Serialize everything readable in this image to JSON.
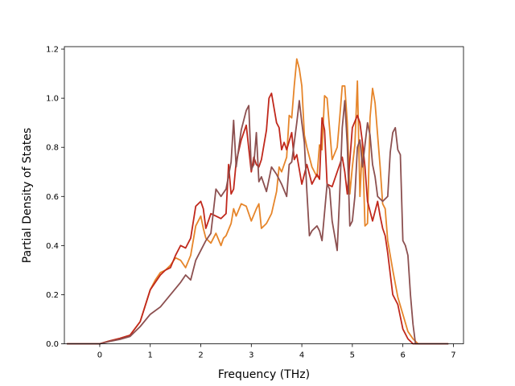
{
  "chart_data": {
    "type": "line",
    "title": "",
    "xlabel": "Frequency (THz)",
    "ylabel": "Partial Density of States",
    "xlim": [
      -0.7,
      7.2
    ],
    "ylim": [
      0.0,
      1.21
    ],
    "xticks": [
      0,
      1,
      2,
      3,
      4,
      5,
      6,
      7
    ],
    "xtick_labels": [
      "0",
      "1",
      "2",
      "3",
      "4",
      "5",
      "6",
      "7"
    ],
    "yticks": [
      0.0,
      0.2,
      0.4,
      0.6,
      0.8,
      1.0,
      1.2
    ],
    "ytick_labels": [
      "0.0",
      "0.2",
      "0.4",
      "0.6",
      "0.8",
      "1.0",
      "1.2"
    ],
    "grid": false,
    "legend": "none",
    "series": [
      {
        "color": "#e6852a",
        "x": [
          -0.65,
          0.0,
          0.2,
          0.4,
          0.6,
          0.8,
          1.0,
          1.1,
          1.2,
          1.3,
          1.4,
          1.5,
          1.6,
          1.7,
          1.8,
          1.9,
          2.0,
          2.05,
          2.1,
          2.15,
          2.2,
          2.3,
          2.4,
          2.45,
          2.5,
          2.6,
          2.65,
          2.7,
          2.8,
          2.9,
          3.0,
          3.1,
          3.15,
          3.2,
          3.3,
          3.4,
          3.5,
          3.55,
          3.6,
          3.7,
          3.75,
          3.8,
          3.85,
          3.9,
          3.95,
          4.0,
          4.05,
          4.1,
          4.2,
          4.3,
          4.35,
          4.4,
          4.45,
          4.5,
          4.6,
          4.7,
          4.75,
          4.8,
          4.85,
          4.9,
          4.95,
          5.0,
          5.05,
          5.1,
          5.15,
          5.2,
          5.25,
          5.3,
          5.35,
          5.4,
          5.45,
          5.5,
          5.55,
          5.6,
          5.65,
          5.7,
          5.8,
          5.9,
          6.0,
          6.1,
          6.2,
          6.3,
          6.4,
          6.6,
          6.9
        ],
        "y": [
          0.0,
          0.0,
          0.012,
          0.022,
          0.035,
          0.09,
          0.22,
          0.26,
          0.29,
          0.3,
          0.32,
          0.35,
          0.34,
          0.31,
          0.36,
          0.48,
          0.52,
          0.47,
          0.43,
          0.42,
          0.41,
          0.45,
          0.4,
          0.43,
          0.44,
          0.49,
          0.55,
          0.52,
          0.57,
          0.56,
          0.5,
          0.55,
          0.57,
          0.47,
          0.49,
          0.53,
          0.62,
          0.72,
          0.7,
          0.76,
          0.93,
          0.92,
          1.05,
          1.16,
          1.12,
          1.05,
          0.85,
          0.8,
          0.72,
          0.68,
          0.81,
          0.79,
          1.01,
          1.0,
          0.75,
          0.8,
          0.92,
          1.05,
          1.05,
          0.9,
          0.61,
          0.72,
          0.81,
          1.07,
          0.6,
          0.82,
          0.48,
          0.49,
          0.92,
          1.04,
          0.98,
          0.85,
          0.72,
          0.57,
          0.55,
          0.42,
          0.3,
          0.19,
          0.12,
          0.05,
          0.02,
          0.0,
          0.0,
          0.0,
          0.0
        ]
      },
      {
        "color": "#c0281c",
        "x": [
          -0.65,
          0.0,
          0.2,
          0.4,
          0.6,
          0.8,
          1.0,
          1.1,
          1.2,
          1.3,
          1.4,
          1.5,
          1.6,
          1.7,
          1.8,
          1.9,
          2.0,
          2.05,
          2.1,
          2.2,
          2.3,
          2.4,
          2.5,
          2.55,
          2.6,
          2.65,
          2.7,
          2.8,
          2.9,
          3.0,
          3.05,
          3.1,
          3.15,
          3.2,
          3.3,
          3.35,
          3.4,
          3.5,
          3.55,
          3.6,
          3.65,
          3.7,
          3.8,
          3.85,
          3.9,
          4.0,
          4.1,
          4.2,
          4.3,
          4.35,
          4.4,
          4.45,
          4.5,
          4.6,
          4.7,
          4.8,
          4.85,
          4.9,
          5.0,
          5.1,
          5.15,
          5.2,
          5.25,
          5.3,
          5.4,
          5.5,
          5.55,
          5.6,
          5.65,
          5.7,
          5.8,
          5.9,
          6.0,
          6.1,
          6.2,
          6.3,
          6.5,
          6.9
        ],
        "y": [
          0.0,
          0.0,
          0.012,
          0.022,
          0.035,
          0.09,
          0.22,
          0.25,
          0.28,
          0.3,
          0.31,
          0.36,
          0.4,
          0.39,
          0.43,
          0.56,
          0.58,
          0.55,
          0.47,
          0.53,
          0.52,
          0.51,
          0.53,
          0.73,
          0.61,
          0.63,
          0.74,
          0.83,
          0.89,
          0.7,
          0.76,
          0.73,
          0.72,
          0.75,
          0.87,
          1.0,
          1.02,
          0.9,
          0.88,
          0.79,
          0.82,
          0.79,
          0.86,
          0.75,
          0.77,
          0.65,
          0.73,
          0.65,
          0.69,
          0.67,
          0.92,
          0.87,
          0.65,
          0.64,
          0.7,
          0.76,
          0.7,
          0.61,
          0.88,
          0.93,
          0.9,
          0.82,
          0.72,
          0.58,
          0.5,
          0.58,
          0.52,
          0.47,
          0.44,
          0.37,
          0.2,
          0.16,
          0.06,
          0.02,
          0.0,
          0.0,
          0.0,
          0.0
        ]
      },
      {
        "color": "#8c5050",
        "x": [
          -0.65,
          0.0,
          0.2,
          0.4,
          0.6,
          0.8,
          1.0,
          1.2,
          1.4,
          1.6,
          1.7,
          1.8,
          1.9,
          2.0,
          2.1,
          2.2,
          2.3,
          2.4,
          2.5,
          2.6,
          2.65,
          2.7,
          2.8,
          2.9,
          2.95,
          3.0,
          3.05,
          3.1,
          3.15,
          3.2,
          3.3,
          3.4,
          3.5,
          3.6,
          3.7,
          3.75,
          3.8,
          3.85,
          3.9,
          3.95,
          4.0,
          4.05,
          4.1,
          4.15,
          4.2,
          4.3,
          4.35,
          4.4,
          4.5,
          4.55,
          4.6,
          4.7,
          4.75,
          4.8,
          4.85,
          4.9,
          4.95,
          5.0,
          5.05,
          5.1,
          5.15,
          5.2,
          5.3,
          5.35,
          5.4,
          5.45,
          5.5,
          5.6,
          5.7,
          5.75,
          5.8,
          5.85,
          5.9,
          5.95,
          6.0,
          6.05,
          6.1,
          6.15,
          6.2,
          6.25,
          6.3,
          6.5,
          6.9
        ],
        "y": [
          0.0,
          0.0,
          0.01,
          0.018,
          0.03,
          0.07,
          0.12,
          0.15,
          0.2,
          0.25,
          0.28,
          0.26,
          0.34,
          0.38,
          0.42,
          0.45,
          0.63,
          0.6,
          0.63,
          0.74,
          0.91,
          0.72,
          0.87,
          0.95,
          0.97,
          0.71,
          0.73,
          0.86,
          0.66,
          0.68,
          0.62,
          0.72,
          0.69,
          0.65,
          0.6,
          0.73,
          0.74,
          0.82,
          0.9,
          0.99,
          0.9,
          0.82,
          0.62,
          0.44,
          0.46,
          0.48,
          0.46,
          0.42,
          0.65,
          0.63,
          0.5,
          0.38,
          0.61,
          0.88,
          0.99,
          0.81,
          0.48,
          0.5,
          0.6,
          0.8,
          0.83,
          0.72,
          0.9,
          0.85,
          0.73,
          0.68,
          0.6,
          0.58,
          0.6,
          0.78,
          0.86,
          0.88,
          0.79,
          0.77,
          0.42,
          0.4,
          0.36,
          0.2,
          0.08,
          0.0,
          0.0,
          0.0,
          0.0
        ]
      }
    ]
  }
}
